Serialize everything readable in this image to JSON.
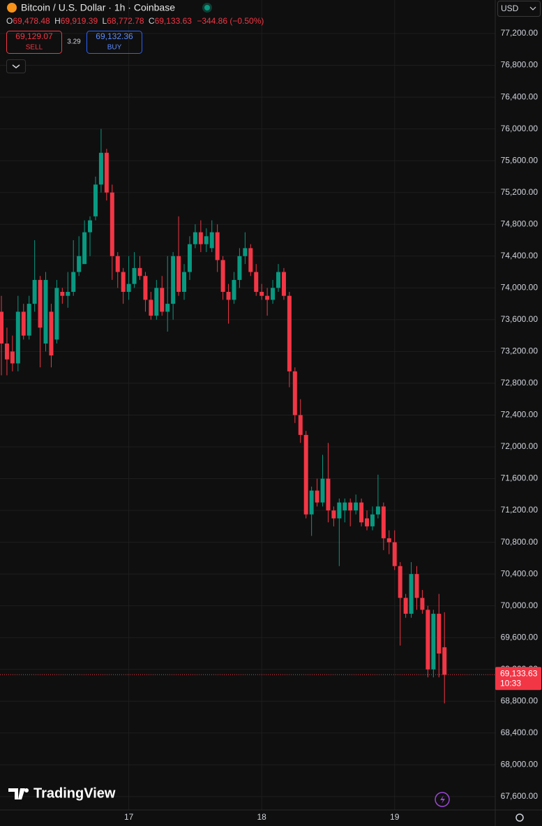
{
  "chart_data": {
    "type": "candlestick",
    "title": "Bitcoin / U.S. Dollar · 1h · Coinbase",
    "ohlc_legend": {
      "o_key": "O",
      "o": "69,478.48",
      "h_key": "H",
      "h": "69,919.39",
      "l_key": "L",
      "l": "68,772.78",
      "c_key": "C",
      "c": "69,133.63",
      "change": "−344.86 (−0.50%)"
    },
    "trade": {
      "sell_price": "69,129.07",
      "sell": "SELL",
      "spread": "3.29",
      "buy_price": "69,132.36",
      "buy": "BUY"
    },
    "currency": "USD",
    "price_tag": {
      "price": "69,133.63",
      "countdown": "10:33"
    },
    "watermark": "TradingView",
    "up_color": "#089981",
    "down_color": "#f23645",
    "grid": true,
    "categories": [
      null,
      null,
      null,
      null,
      null,
      null,
      null,
      null,
      null,
      null,
      null,
      null,
      null,
      null,
      null,
      null,
      null,
      null,
      null,
      null,
      null,
      null,
      null,
      "17",
      null,
      null,
      null,
      null,
      null,
      null,
      null,
      null,
      null,
      null,
      null,
      null,
      null,
      null,
      null,
      null,
      null,
      null,
      null,
      null,
      null,
      null,
      null,
      "18",
      null,
      null,
      null,
      null,
      null,
      null,
      null,
      null,
      null,
      null,
      null,
      null,
      null,
      null,
      null,
      null,
      null,
      null,
      null,
      null,
      null,
      null,
      null,
      "19",
      null,
      null,
      null,
      null,
      null,
      null,
      null,
      null,
      null
    ],
    "open": [
      73700,
      73300,
      73200,
      73050,
      73700,
      73400,
      73800,
      74100,
      73300,
      73700,
      73350,
      73950,
      73900,
      73950,
      74200,
      74300,
      74700,
      74900,
      75300,
      75700,
      75200,
      74400,
      74200,
      73950,
      74050,
      74250,
      74150,
      73850,
      73650,
      74000,
      73700,
      73800,
      74400,
      73950,
      74200,
      74550,
      74700,
      74550,
      74500,
      74700,
      74350,
      73950,
      73850,
      74100,
      74400,
      74500,
      74200,
      73950,
      73900,
      73850,
      74000,
      74200,
      73900,
      72950,
      72400,
      72150,
      71150,
      71450,
      71300,
      71600,
      71200,
      71100,
      71200,
      71300,
      71200,
      71300,
      71100,
      71000,
      71150,
      71250,
      70850,
      70800,
      70500,
      70100,
      69900,
      70400,
      70100,
      69950,
      69200,
      69900,
      69478.48
    ],
    "high": [
      73900,
      73500,
      73400,
      73900,
      73800,
      73900,
      74600,
      74150,
      74200,
      73800,
      74100,
      74000,
      74200,
      74600,
      74650,
      74850,
      74900,
      75400,
      76000,
      75750,
      75300,
      74450,
      74250,
      74400,
      74450,
      74400,
      74200,
      73950,
      74100,
      74150,
      74400,
      74450,
      74900,
      74300,
      74650,
      74800,
      74850,
      74750,
      74850,
      74800,
      74400,
      74050,
      74200,
      74500,
      74700,
      74550,
      74300,
      74050,
      74000,
      74100,
      74300,
      74250,
      73950,
      73000,
      72600,
      72200,
      71500,
      71600,
      71900,
      72050,
      71250,
      71350,
      71350,
      71350,
      71400,
      71350,
      71200,
      71250,
      71650,
      71300,
      70950,
      70950,
      70550,
      70150,
      70550,
      70500,
      70200,
      70000,
      69950,
      70150,
      69919.39
    ],
    "low": [
      72900,
      72900,
      72950,
      72950,
      73350,
      73350,
      73700,
      73000,
      73200,
      73000,
      73300,
      73800,
      73750,
      73900,
      74150,
      74300,
      74400,
      74850,
      75200,
      75100,
      74100,
      74000,
      73800,
      73850,
      74000,
      74100,
      73700,
      73600,
      73600,
      73650,
      73450,
      73600,
      73900,
      73850,
      74100,
      74500,
      74450,
      74450,
      74450,
      74200,
      73850,
      73550,
      73800,
      74000,
      74300,
      74150,
      73900,
      73850,
      73650,
      73800,
      73950,
      73850,
      72750,
      72300,
      72050,
      71100,
      70880,
      71250,
      71250,
      71050,
      71000,
      70500,
      71050,
      71000,
      71150,
      71000,
      70950,
      70950,
      71100,
      70700,
      70650,
      70450,
      69500,
      69850,
      69850,
      69950,
      69900,
      69100,
      69100,
      69100,
      68772.78
    ],
    "close": [
      73300,
      73100,
      73050,
      73700,
      73400,
      73800,
      74100,
      73500,
      74100,
      73150,
      74000,
      73900,
      73950,
      74200,
      74400,
      74700,
      74850,
      75300,
      75700,
      75200,
      74400,
      74200,
      73950,
      74050,
      74250,
      74150,
      73850,
      73650,
      74000,
      73700,
      73800,
      74400,
      73950,
      74200,
      74550,
      74700,
      74550,
      74650,
      74700,
      74350,
      73950,
      73850,
      74100,
      74400,
      74500,
      74200,
      73950,
      73900,
      73850,
      74000,
      74200,
      73900,
      72950,
      72400,
      72150,
      71150,
      71450,
      71300,
      71600,
      71200,
      71100,
      71300,
      71300,
      71200,
      71300,
      71050,
      71000,
      71150,
      71250,
      70850,
      70800,
      70500,
      70100,
      69900,
      70400,
      70100,
      69950,
      69200,
      69900,
      69400,
      69133.63
    ],
    "ylim": [
      67432,
      77622
    ],
    "yticks": [
      {
        "value": 67600,
        "label": "67,600.00"
      },
      {
        "value": 68000,
        "label": "68,000.00"
      },
      {
        "value": 68400,
        "label": "68,400.00"
      },
      {
        "value": 68800,
        "label": "68,800.00"
      },
      {
        "value": 69200,
        "label": "69,200.00"
      },
      {
        "value": 69600,
        "label": "69,600.00"
      },
      {
        "value": 70000,
        "label": "70,000.00"
      },
      {
        "value": 70400,
        "label": "70,400.00"
      },
      {
        "value": 70800,
        "label": "70,800.00"
      },
      {
        "value": 71200,
        "label": "71,200.00"
      },
      {
        "value": 71600,
        "label": "71,600.00"
      },
      {
        "value": 72000,
        "label": "72,000.00"
      },
      {
        "value": 72400,
        "label": "72,400.00"
      },
      {
        "value": 72800,
        "label": "72,800.00"
      },
      {
        "value": 73200,
        "label": "73,200.00"
      },
      {
        "value": 73600,
        "label": "73,600.00"
      },
      {
        "value": 74000,
        "label": "74,000.00"
      },
      {
        "value": 74400,
        "label": "74,400.00"
      },
      {
        "value": 74800,
        "label": "74,800.00"
      },
      {
        "value": 75200,
        "label": "75,200.00"
      },
      {
        "value": 75600,
        "label": "75,600.00"
      },
      {
        "value": 76000,
        "label": "76,000.00"
      },
      {
        "value": 76400,
        "label": "76,400.00"
      },
      {
        "value": 76800,
        "label": "76,800.00"
      },
      {
        "value": 77200,
        "label": "77,200.00"
      }
    ]
  }
}
